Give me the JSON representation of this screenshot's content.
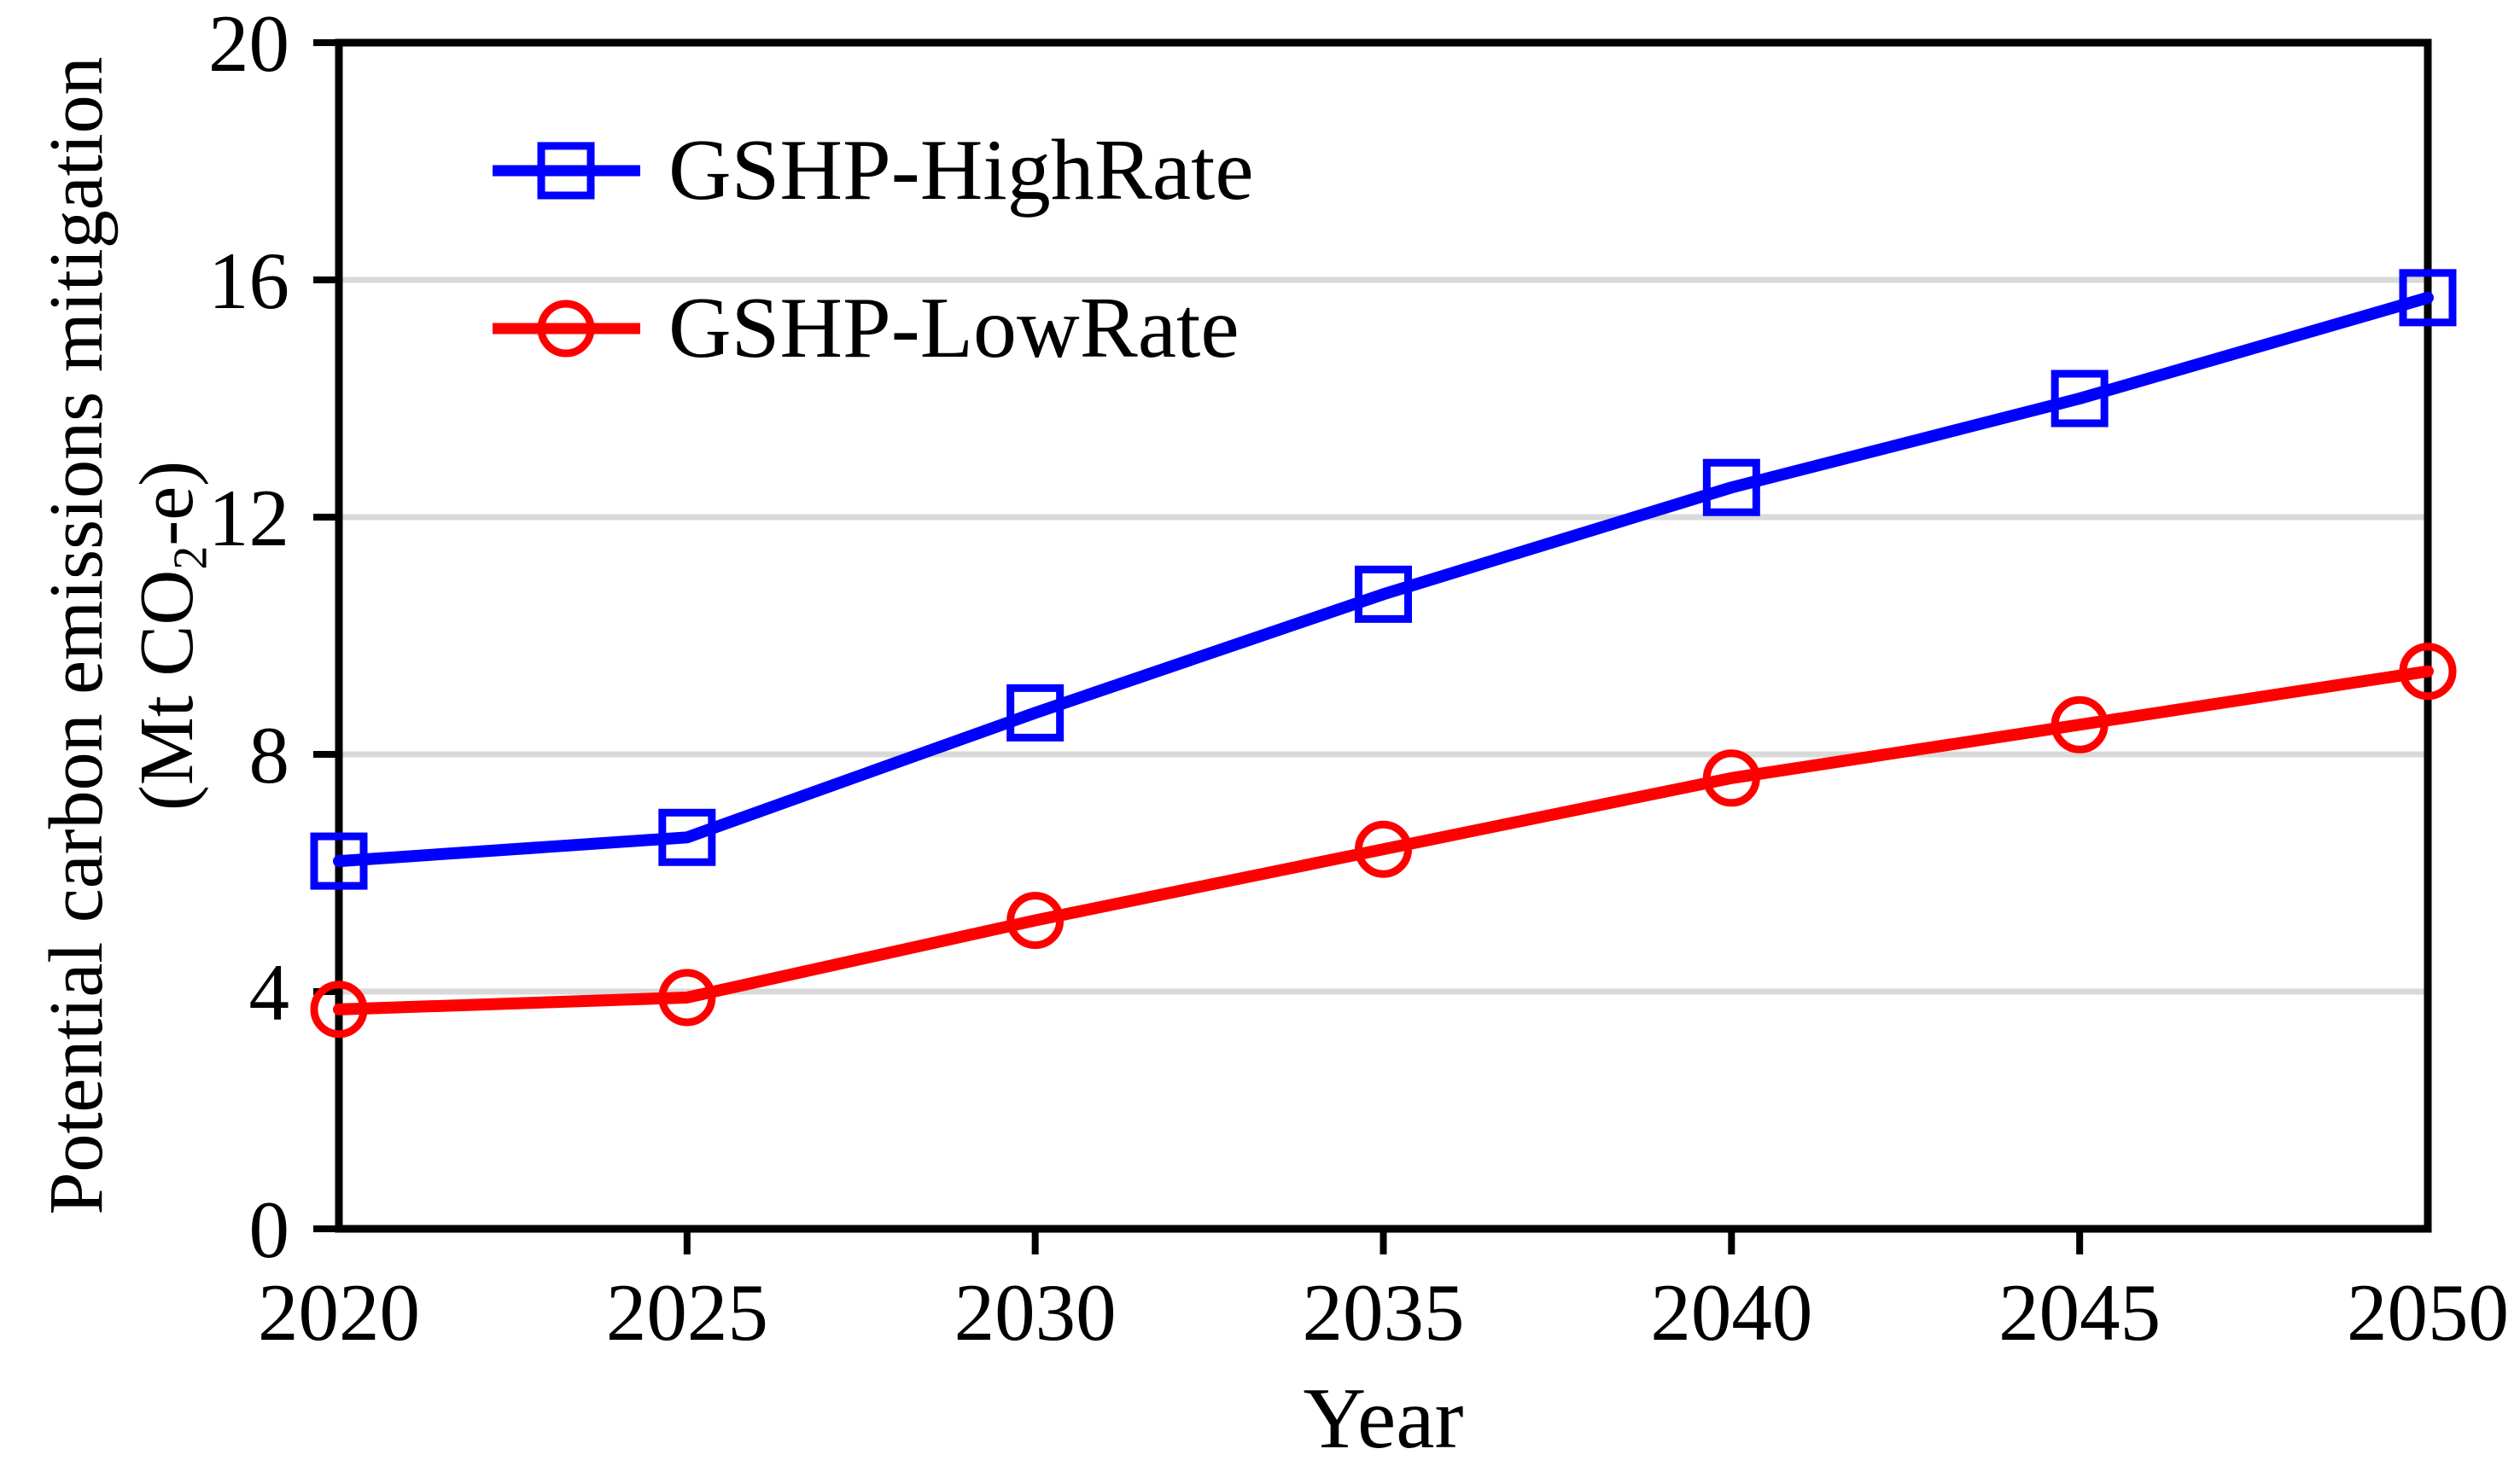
{
  "figure": {
    "y_axis": {
      "title_line1": "Potential carbon emissions mitigation",
      "title_line2_prefix": "(Mt CO",
      "title_line2_sub": "2",
      "title_line2_suffix": "-e)",
      "tick_labels": [
        "0",
        "4",
        "8",
        "12",
        "16",
        "20"
      ],
      "range": [
        0,
        20
      ]
    },
    "x_axis": {
      "title": "Year",
      "tick_labels": [
        "2020",
        "2025",
        "2030",
        "2035",
        "2040",
        "2045",
        "2050"
      ],
      "range": [
        2020,
        2050
      ]
    },
    "legend": [
      {
        "label": "GSHP-HighRate",
        "marker": "square",
        "color": "#0000FF"
      },
      {
        "label": "GSHP-LowRate",
        "marker": "circle",
        "color": "#FF0000"
      }
    ],
    "colors": {
      "highrate": "#0000FF",
      "lowrate": "#FF0000",
      "gridline": "#D9D9D9",
      "axis": "#000000"
    }
  },
  "chart_data": {
    "type": "line",
    "x": [
      2020,
      2025,
      2030,
      2035,
      2040,
      2045,
      2050
    ],
    "series": [
      {
        "name": "GSHP-HighRate",
        "color": "#0000FF",
        "marker": "square",
        "values": [
          6.2,
          6.6,
          8.7,
          10.7,
          12.5,
          14.0,
          15.7
        ]
      },
      {
        "name": "GSHP-LowRate",
        "color": "#FF0000",
        "marker": "circle",
        "values": [
          3.7,
          3.9,
          5.2,
          6.4,
          7.6,
          8.5,
          9.4
        ]
      }
    ],
    "title": "",
    "xlabel": "Year",
    "ylabel": "Potential carbon emissions mitigation (Mt CO2-e)",
    "ylim": [
      0,
      20
    ],
    "y_ticks": [
      0,
      4,
      8,
      12,
      16,
      20
    ],
    "x_ticks": [
      2020,
      2025,
      2030,
      2035,
      2040,
      2045,
      2050
    ],
    "grid": "horizontal",
    "gridline_color": "#D9D9D9",
    "legend_position": "upper-left-inside",
    "plot_border": "box"
  }
}
